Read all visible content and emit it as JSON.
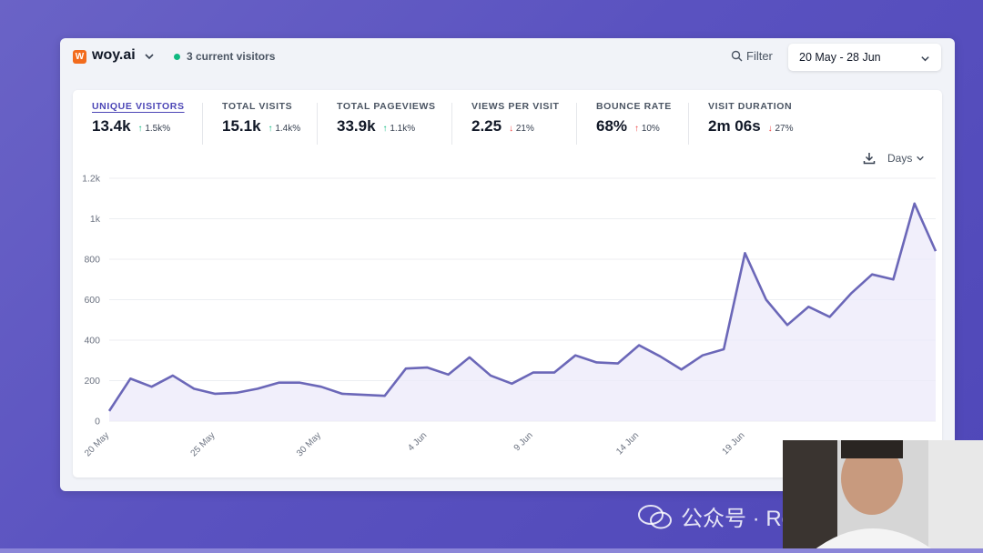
{
  "header": {
    "site_name": "woy.ai",
    "logo_letter": "W",
    "current_visitors": "3 current visitors",
    "filter_label": "Filter",
    "date_range": "20 May - 28 Jun"
  },
  "metrics": [
    {
      "label": "UNIQUE VISITORS",
      "value": "13.4k",
      "change": "1.5k%",
      "direction": "up"
    },
    {
      "label": "TOTAL VISITS",
      "value": "15.1k",
      "change": "1.4k%",
      "direction": "up"
    },
    {
      "label": "TOTAL PAGEVIEWS",
      "value": "33.9k",
      "change": "1.1k%",
      "direction": "up"
    },
    {
      "label": "VIEWS PER VISIT",
      "value": "2.25",
      "change": "21%",
      "direction": "down"
    },
    {
      "label": "BOUNCE RATE",
      "value": "68%",
      "change": "10%",
      "direction": "up"
    },
    {
      "label": "VISIT DURATION",
      "value": "2m 06s",
      "change": "27%",
      "direction": "down"
    }
  ],
  "controls": {
    "interval_label": "Days"
  },
  "watermark": "公众号 · ReadLecture",
  "chart_data": {
    "type": "area",
    "title": "",
    "xlabel": "",
    "ylabel": "",
    "ylim": [
      0,
      1200
    ],
    "y_ticks": [
      "0",
      "200",
      "400",
      "600",
      "800",
      "1k",
      "1.2k"
    ],
    "x_ticks": [
      "20 May",
      "25 May",
      "30 May",
      "4 Jun",
      "9 Jun",
      "14 Jun",
      "19 Jun"
    ],
    "grid": true,
    "line_color": "#6b67b8",
    "fill_color": "#eceafa",
    "series": [
      {
        "values": [
          50,
          210,
          170,
          225,
          160,
          135,
          140,
          160,
          190,
          190,
          170,
          135,
          130,
          125,
          260,
          265,
          230,
          315,
          225,
          185,
          240,
          240,
          325,
          290,
          285,
          375,
          320,
          255,
          325,
          355,
          830,
          600,
          475,
          565,
          515,
          630,
          725,
          700,
          1075,
          840
        ]
      }
    ]
  }
}
